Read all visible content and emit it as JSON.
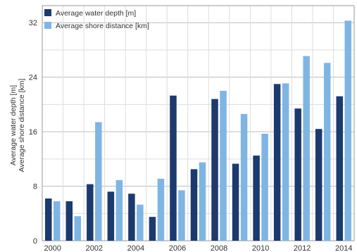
{
  "chart_data": {
    "type": "bar",
    "categories": [
      "2000",
      "2001",
      "2002",
      "2003",
      "2004",
      "2005",
      "2006",
      "2007",
      "2008",
      "2009",
      "2010",
      "2011",
      "2012",
      "2013",
      "2014"
    ],
    "x_tick_labels": [
      "2000",
      "2002",
      "2004",
      "2006",
      "2008",
      "2010",
      "2012",
      "2014"
    ],
    "series": [
      {
        "name": "Average water depth [m]",
        "color": "#1c3a6e",
        "values": [
          6.2,
          5.8,
          8.3,
          7.2,
          6.9,
          3.5,
          21.3,
          10.5,
          20.8,
          11.3,
          12.5,
          23.0,
          19.4,
          16.4,
          21.2
        ]
      },
      {
        "name": "Average shore distance [km]",
        "color": "#7fb5e3",
        "values": [
          5.8,
          3.6,
          17.4,
          8.9,
          5.3,
          9.1,
          7.4,
          11.5,
          22.0,
          18.6,
          15.7,
          23.1,
          27.1,
          26.1,
          32.3
        ]
      }
    ],
    "yticks": [
      0,
      8,
      16,
      24,
      32
    ],
    "ylim": [
      0,
      34.5
    ],
    "ylabel": [
      "Average water depth [m]",
      "Average shore distance [km]"
    ],
    "grid": true,
    "legend": "top-left"
  }
}
